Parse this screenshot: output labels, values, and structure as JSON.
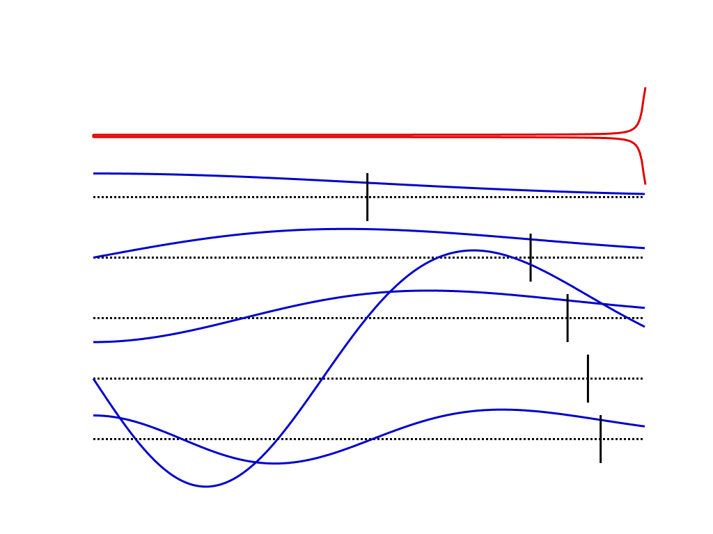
{
  "colors": {
    "background": "#ffffff",
    "potential": "#e00000",
    "eigenfunction": "#0000cc",
    "baseline": "#000000",
    "turning_point": "#000000"
  },
  "potential": {
    "shape": "sharp-walled well, flat floor, walls rising steeply at the right end"
  },
  "modes": [
    {
      "n": 0,
      "turning_point_fraction": 0.497
    },
    {
      "n": 1,
      "turning_point_fraction": 0.793
    },
    {
      "n": 2,
      "turning_point_fraction": 0.86
    },
    {
      "n": 3,
      "turning_point_fraction": 0.897
    },
    {
      "n": 4,
      "turning_point_fraction": 0.92
    }
  ]
}
